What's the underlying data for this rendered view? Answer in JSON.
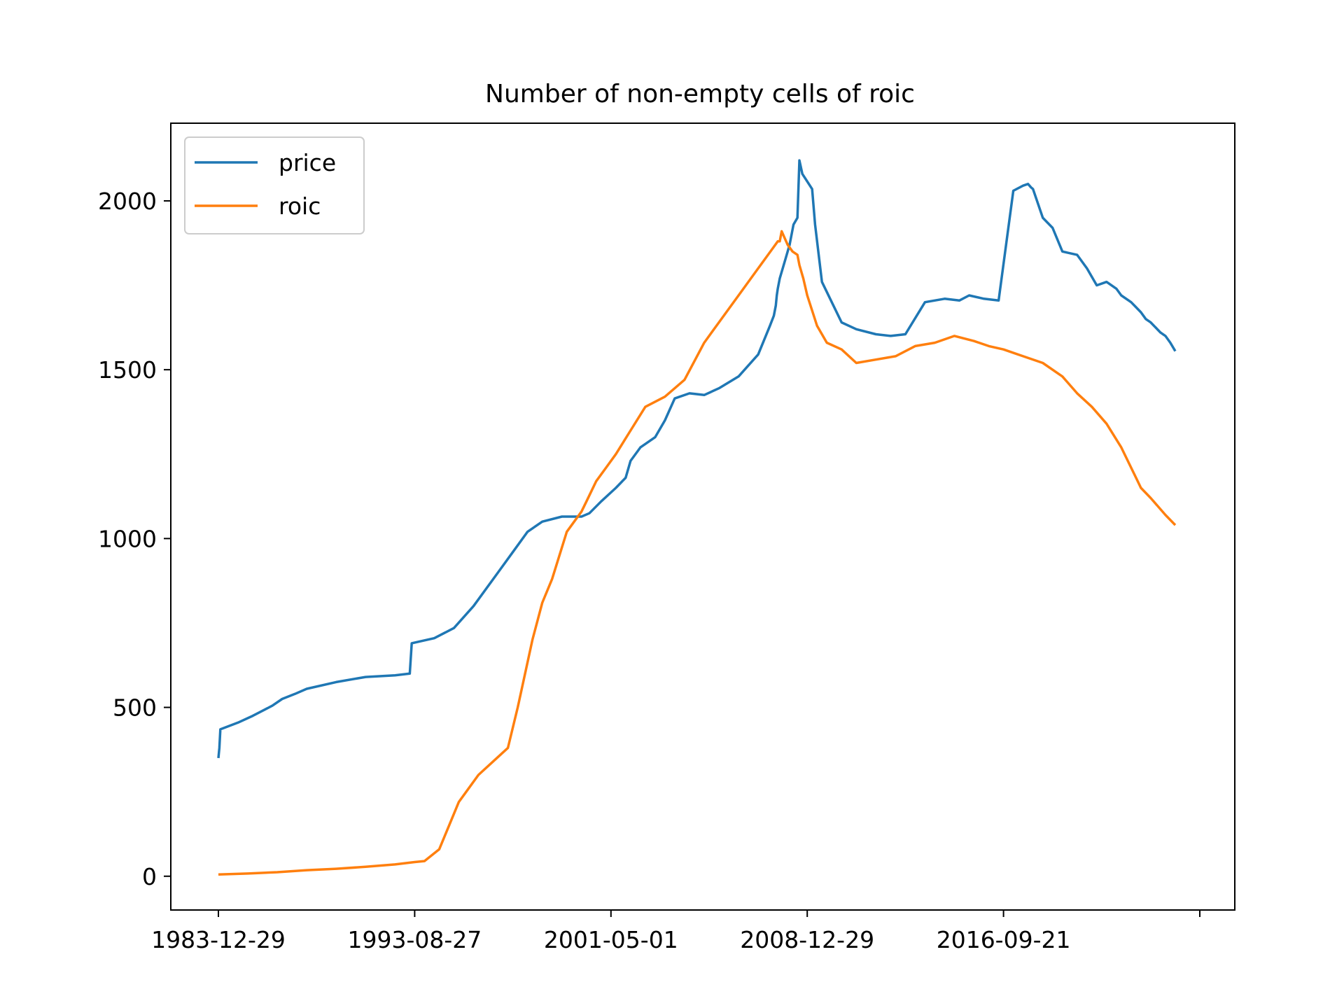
{
  "chart_data": {
    "type": "line",
    "title": "Number of non-empty cells of roic",
    "xlabel": "",
    "ylabel": "",
    "x_scale": "index",
    "x_range": [
      0,
      10000
    ],
    "ylim": [
      -100,
      2230
    ],
    "x_ticks": [
      {
        "x": 0,
        "label": "1983-12-29"
      },
      {
        "x": 2000,
        "label": "1993-08-27"
      },
      {
        "x": 4000,
        "label": "2001-05-01"
      },
      {
        "x": 6000,
        "label": "2008-12-29"
      },
      {
        "x": 8000,
        "label": "2016-09-21"
      },
      {
        "x": 10000,
        "label": ""
      }
    ],
    "y_ticks": [
      {
        "y": 0,
        "label": "0"
      },
      {
        "y": 500,
        "label": "500"
      },
      {
        "y": 1000,
        "label": "1000"
      },
      {
        "y": 1500,
        "label": "1500"
      },
      {
        "y": 2000,
        "label": "2000"
      }
    ],
    "grid": false,
    "legend_position": "upper-left",
    "series": [
      {
        "name": "price",
        "color": "#1f77b4",
        "x": [
          0,
          10,
          20,
          200,
          350,
          550,
          650,
          780,
          900,
          1200,
          1500,
          1800,
          1800,
          1950,
          1970,
          2200,
          2400,
          2600,
          2850,
          3000,
          3150,
          3300,
          3500,
          3700,
          3780,
          3900,
          4050,
          4150,
          4200,
          4300,
          4450,
          4550,
          4650,
          4800,
          4950,
          5100,
          5300,
          5500,
          5620,
          5660,
          5680,
          5690,
          5700,
          5720,
          5780,
          5820,
          5860,
          5900,
          5920,
          5950,
          6050,
          6080,
          6150,
          6350,
          6500,
          6700,
          6850,
          7000,
          7200,
          7400,
          7550,
          7650,
          7800,
          7950,
          8100,
          8200,
          8250,
          8280,
          8300,
          8400,
          8500,
          8600,
          8750,
          8850,
          8950,
          9050,
          9150,
          9200,
          9300,
          9350,
          9400,
          9450,
          9500,
          9600,
          9650,
          9700,
          9750
        ],
        "y": [
          350,
          380,
          435,
          455,
          475,
          505,
          525,
          540,
          555,
          575,
          590,
          595,
          595,
          600,
          690,
          705,
          735,
          800,
          900,
          960,
          1020,
          1050,
          1065,
          1065,
          1075,
          1110,
          1150,
          1180,
          1230,
          1270,
          1300,
          1350,
          1415,
          1430,
          1425,
          1445,
          1480,
          1545,
          1630,
          1660,
          1690,
          1720,
          1740,
          1770,
          1830,
          1870,
          1930,
          1950,
          2120,
          2080,
          2035,
          1930,
          1760,
          1640,
          1620,
          1605,
          1600,
          1605,
          1700,
          1710,
          1705,
          1720,
          1710,
          1705,
          2030,
          2045,
          2050,
          2040,
          2035,
          1950,
          1920,
          1850,
          1840,
          1800,
          1750,
          1760,
          1740,
          1720,
          1700,
          1685,
          1670,
          1650,
          1640,
          1610,
          1600,
          1580,
          1555
        ]
      },
      {
        "name": "roic",
        "color": "#ff7f0e",
        "x": [
          0,
          300,
          600,
          900,
          1200,
          1500,
          1800,
          2000,
          2100,
          2250,
          2350,
          2450,
          2550,
          2650,
          2800,
          2950,
          3050,
          3200,
          3300,
          3400,
          3550,
          3700,
          3750,
          3850,
          3950,
          4050,
          4200,
          4350,
          4550,
          4750,
          4950,
          5100,
          5300,
          5500,
          5650,
          5700,
          5720,
          5740,
          5800,
          5850,
          5900,
          5920,
          5960,
          6000,
          6100,
          6200,
          6350,
          6500,
          6700,
          6900,
          7100,
          7300,
          7500,
          7700,
          7850,
          8000,
          8200,
          8400,
          8600,
          8750,
          8900,
          9050,
          9200,
          9300,
          9350,
          9400,
          9500,
          9650,
          9750
        ],
        "y": [
          5,
          8,
          12,
          18,
          22,
          28,
          35,
          42,
          45,
          80,
          150,
          220,
          260,
          300,
          340,
          380,
          500,
          700,
          810,
          880,
          1020,
          1080,
          1110,
          1170,
          1210,
          1250,
          1320,
          1390,
          1420,
          1470,
          1580,
          1640,
          1720,
          1800,
          1860,
          1880,
          1880,
          1910,
          1870,
          1850,
          1840,
          1810,
          1770,
          1720,
          1630,
          1580,
          1560,
          1520,
          1530,
          1540,
          1570,
          1580,
          1600,
          1585,
          1570,
          1560,
          1540,
          1520,
          1480,
          1430,
          1390,
          1340,
          1270,
          1210,
          1180,
          1150,
          1120,
          1070,
          1040
        ]
      }
    ]
  }
}
